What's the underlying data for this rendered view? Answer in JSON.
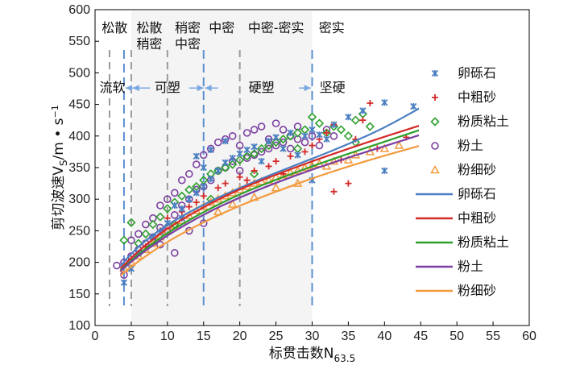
{
  "chart_data": {
    "type": "scatter",
    "title": "",
    "xlabel": "标贯击数N",
    "xlabel_sub": "63.5",
    "ylabel": "剪切波速V",
    "ylabel_sub": "S",
    "ylabel_unit": "/m • s",
    "ylabel_unit_sup": "−1",
    "xlim": [
      0,
      60
    ],
    "ylim": [
      100,
      600
    ],
    "xticks": [
      0,
      5,
      10,
      15,
      20,
      25,
      30,
      35,
      40,
      45,
      50,
      55,
      60
    ],
    "yticks": [
      100,
      150,
      200,
      250,
      300,
      350,
      400,
      450,
      500,
      550,
      600
    ],
    "grid": false,
    "legend_position": "right",
    "zones": {
      "gray_lines": [
        2,
        5,
        10,
        20
      ],
      "blue_lines": [
        4,
        15,
        30
      ],
      "density_labels": [
        {
          "text": "松散",
          "lines": [
            "松散"
          ],
          "x_center": 2.7
        },
        {
          "text": "松散稍密",
          "lines": [
            "松散",
            "稍密"
          ],
          "x_center": 7.5
        },
        {
          "text": "稍密中密",
          "lines": [
            "稍密",
            "中密"
          ],
          "x_center": 12.8
        },
        {
          "text": "中密",
          "lines": [
            "中密"
          ],
          "x_center": 17.5
        },
        {
          "text": "中密-密实",
          "lines": [
            "中密-密实"
          ],
          "x_center": 25
        },
        {
          "text": "密实",
          "lines": [
            "密实"
          ],
          "x_center": 32.7
        }
      ],
      "consistency_labels": [
        {
          "text": "流软",
          "x_center": 2.4
        },
        {
          "text": "可塑",
          "x_center": 10.0
        },
        {
          "text": "硬塑",
          "x_center": 23.0
        },
        {
          "text": "坚硬",
          "x_center": 32.8
        }
      ],
      "consistency_y": 490
    },
    "series": [
      {
        "name": "卵砾石",
        "kind": "scatter",
        "marker": "x",
        "color": "#4a7fc1",
        "points": [
          [
            4,
            168
          ],
          [
            5,
            190
          ],
          [
            6,
            215
          ],
          [
            8,
            240
          ],
          [
            10,
            262
          ],
          [
            12,
            285
          ],
          [
            13,
            300
          ],
          [
            14,
            310
          ],
          [
            15,
            320
          ],
          [
            15,
            350
          ],
          [
            16,
            332
          ],
          [
            17,
            345
          ],
          [
            18,
            358
          ],
          [
            19,
            365
          ],
          [
            20,
            372
          ],
          [
            21,
            378
          ],
          [
            22,
            383
          ],
          [
            24,
            392
          ],
          [
            25,
            398
          ],
          [
            27,
            405
          ],
          [
            28,
            370
          ],
          [
            29,
            400
          ],
          [
            30,
            410
          ],
          [
            30,
            330
          ],
          [
            31,
            402
          ],
          [
            33,
            418
          ],
          [
            35,
            430
          ],
          [
            37,
            440
          ],
          [
            40,
            453
          ],
          [
            40,
            345
          ],
          [
            44,
            447
          ],
          [
            14,
            368
          ],
          [
            16,
            378
          ],
          [
            12,
            270
          ],
          [
            9,
            248
          ],
          [
            11,
            290
          ],
          [
            18,
            392
          ],
          [
            23,
            360
          ],
          [
            26,
            380
          ],
          [
            32,
            395
          ]
        ]
      },
      {
        "name": "中粗砂",
        "kind": "scatter",
        "marker": "plus",
        "color": "#d42a2a",
        "points": [
          [
            5,
            205
          ],
          [
            7,
            225
          ],
          [
            9,
            250
          ],
          [
            10,
            270
          ],
          [
            12,
            280
          ],
          [
            14,
            295
          ],
          [
            15,
            305
          ],
          [
            17,
            318
          ],
          [
            18,
            325
          ],
          [
            20,
            335
          ],
          [
            22,
            345
          ],
          [
            24,
            352
          ],
          [
            25,
            360
          ],
          [
            27,
            368
          ],
          [
            29,
            375
          ],
          [
            30,
            385
          ],
          [
            31,
            395
          ],
          [
            32,
            405
          ],
          [
            33,
            418
          ],
          [
            34,
            362
          ],
          [
            36,
            395
          ],
          [
            37,
            425
          ],
          [
            38,
            452
          ],
          [
            43,
            398
          ],
          [
            35,
            325
          ],
          [
            33,
            312
          ],
          [
            39,
            380
          ],
          [
            26,
            340
          ],
          [
            21,
            330
          ],
          [
            13,
            288
          ]
        ]
      },
      {
        "name": "粉质粘土",
        "kind": "scatter",
        "marker": "diamond",
        "color": "#2ca02c",
        "points": [
          [
            5,
            263
          ],
          [
            4,
            235
          ],
          [
            6,
            230
          ],
          [
            7,
            245
          ],
          [
            8,
            260
          ],
          [
            9,
            272
          ],
          [
            10,
            285
          ],
          [
            11,
            295
          ],
          [
            12,
            305
          ],
          [
            13,
            315
          ],
          [
            14,
            320
          ],
          [
            15,
            330
          ],
          [
            16,
            340
          ],
          [
            17,
            345
          ],
          [
            18,
            350
          ],
          [
            19,
            355
          ],
          [
            20,
            362
          ],
          [
            21,
            368
          ],
          [
            22,
            372
          ],
          [
            23,
            380
          ],
          [
            24,
            385
          ],
          [
            25,
            390
          ],
          [
            26,
            395
          ],
          [
            27,
            400
          ],
          [
            28,
            405
          ],
          [
            29,
            410
          ],
          [
            30,
            430
          ],
          [
            31,
            420
          ],
          [
            32,
            405
          ],
          [
            33,
            415
          ],
          [
            34,
            410
          ],
          [
            35,
            400
          ],
          [
            36,
            425
          ],
          [
            37,
            435
          ],
          [
            38,
            415
          ],
          [
            36,
            390
          ],
          [
            28,
            380
          ],
          [
            22,
            340
          ],
          [
            16,
            300
          ],
          [
            11,
            260
          ]
        ]
      },
      {
        "name": "粉土",
        "kind": "scatter",
        "marker": "circle",
        "color": "#7b3fa0",
        "points": [
          [
            3,
            195
          ],
          [
            4,
            180
          ],
          [
            4,
            200
          ],
          [
            5,
            210
          ],
          [
            5,
            235
          ],
          [
            6,
            220
          ],
          [
            6,
            245
          ],
          [
            7,
            230
          ],
          [
            7,
            260
          ],
          [
            8,
            240
          ],
          [
            8,
            270
          ],
          [
            9,
            255
          ],
          [
            9,
            290
          ],
          [
            10,
            250
          ],
          [
            10,
            300
          ],
          [
            11,
            275
          ],
          [
            11,
            310
          ],
          [
            12,
            290
          ],
          [
            12,
            330
          ],
          [
            13,
            300
          ],
          [
            13,
            340
          ],
          [
            14,
            315
          ],
          [
            14,
            355
          ],
          [
            15,
            320
          ],
          [
            15,
            370
          ],
          [
            16,
            330
          ],
          [
            16,
            380
          ],
          [
            17,
            345
          ],
          [
            17,
            390
          ],
          [
            18,
            350
          ],
          [
            18,
            395
          ],
          [
            19,
            360
          ],
          [
            19,
            400
          ],
          [
            20,
            345
          ],
          [
            20,
            385
          ],
          [
            21,
            365
          ],
          [
            21,
            405
          ],
          [
            22,
            370
          ],
          [
            22,
            410
          ],
          [
            23,
            375
          ],
          [
            23,
            415
          ],
          [
            24,
            380
          ],
          [
            24,
            395
          ],
          [
            25,
            385
          ],
          [
            25,
            420
          ],
          [
            26,
            390
          ],
          [
            26,
            410
          ],
          [
            27,
            380
          ],
          [
            27,
            400
          ],
          [
            28,
            395
          ],
          [
            28,
            415
          ],
          [
            29,
            390
          ],
          [
            30,
            400
          ],
          [
            31,
            385
          ],
          [
            32,
            410
          ],
          [
            33,
            400
          ],
          [
            9,
            228
          ],
          [
            11,
            215
          ],
          [
            13,
            250
          ],
          [
            15,
            262
          ]
        ]
      },
      {
        "name": "粉细砂",
        "kind": "scatter",
        "marker": "triangle",
        "color": "#f39a3d",
        "points": [
          [
            4,
            190
          ],
          [
            5,
            200
          ],
          [
            6,
            210
          ],
          [
            7,
            220
          ],
          [
            8,
            230
          ],
          [
            9,
            240
          ],
          [
            10,
            250
          ],
          [
            11,
            258
          ],
          [
            12,
            266
          ],
          [
            13,
            274
          ],
          [
            14,
            282
          ],
          [
            15,
            288
          ],
          [
            16,
            295
          ],
          [
            17,
            300
          ],
          [
            18,
            305
          ],
          [
            19,
            310
          ],
          [
            20,
            315
          ],
          [
            21,
            320
          ],
          [
            22,
            325
          ],
          [
            23,
            328
          ],
          [
            24,
            330
          ],
          [
            25,
            335
          ],
          [
            26,
            338
          ],
          [
            27,
            342
          ],
          [
            28,
            345
          ],
          [
            29,
            350
          ],
          [
            30,
            353
          ],
          [
            31,
            356
          ],
          [
            32,
            352
          ],
          [
            33,
            360
          ],
          [
            35,
            362
          ],
          [
            36,
            370
          ],
          [
            38,
            375
          ],
          [
            40,
            380
          ],
          [
            42,
            385
          ],
          [
            17,
            280
          ],
          [
            19,
            292
          ],
          [
            22,
            303
          ],
          [
            25,
            318
          ],
          [
            28,
            325
          ]
        ]
      },
      {
        "name": "卵砾石",
        "kind": "fit",
        "color": "#4a7fc1",
        "points": [
          [
            3.5,
            194
          ],
          [
            5,
            214
          ],
          [
            7,
            235
          ],
          [
            10,
            260
          ],
          [
            15,
            292
          ],
          [
            20,
            318
          ],
          [
            25,
            342
          ],
          [
            30,
            364
          ],
          [
            35,
            387
          ],
          [
            40,
            413
          ],
          [
            45,
            445
          ]
        ]
      },
      {
        "name": "中粗砂",
        "kind": "fit",
        "color": "#d42a2a",
        "points": [
          [
            3.5,
            190
          ],
          [
            5,
            207
          ],
          [
            7,
            228
          ],
          [
            10,
            254
          ],
          [
            15,
            288
          ],
          [
            20,
            316
          ],
          [
            25,
            339
          ],
          [
            30,
            360
          ],
          [
            35,
            380
          ],
          [
            40,
            399
          ],
          [
            45,
            417
          ]
        ]
      },
      {
        "name": "粉质粘土",
        "kind": "fit",
        "color": "#2ca02c",
        "points": [
          [
            3.5,
            187
          ],
          [
            5,
            203
          ],
          [
            7,
            222
          ],
          [
            10,
            247
          ],
          [
            15,
            280
          ],
          [
            20,
            308
          ],
          [
            25,
            331
          ],
          [
            30,
            352
          ],
          [
            35,
            372
          ],
          [
            40,
            391
          ],
          [
            45,
            410
          ]
        ]
      },
      {
        "name": "粉土",
        "kind": "fit",
        "color": "#7b3fa0",
        "points": [
          [
            3.5,
            186
          ],
          [
            5,
            201
          ],
          [
            7,
            219
          ],
          [
            10,
            243
          ],
          [
            15,
            276
          ],
          [
            20,
            303
          ],
          [
            25,
            326
          ],
          [
            30,
            347
          ],
          [
            35,
            366
          ],
          [
            40,
            384
          ],
          [
            45,
            402
          ]
        ]
      },
      {
        "name": "粉细砂",
        "kind": "fit",
        "color": "#f39a3d",
        "points": [
          [
            3.5,
            179
          ],
          [
            5,
            193
          ],
          [
            7,
            210
          ],
          [
            10,
            233
          ],
          [
            15,
            264
          ],
          [
            20,
            290
          ],
          [
            25,
            312
          ],
          [
            30,
            333
          ],
          [
            35,
            352
          ],
          [
            40,
            369
          ],
          [
            45,
            385
          ]
        ]
      }
    ]
  }
}
